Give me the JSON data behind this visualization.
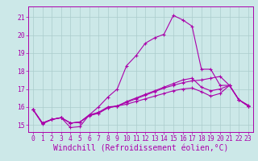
{
  "xlabel": "Windchill (Refroidissement éolien,°C)",
  "ylabel": "",
  "bg_color": "#cce8e8",
  "line_color": "#aa00aa",
  "xlim": [
    -0.5,
    23.5
  ],
  "ylim": [
    14.6,
    21.6
  ],
  "yticks": [
    15,
    16,
    17,
    18,
    19,
    20,
    21
  ],
  "xticks": [
    0,
    1,
    2,
    3,
    4,
    5,
    6,
    7,
    8,
    9,
    10,
    11,
    12,
    13,
    14,
    15,
    16,
    17,
    18,
    19,
    20,
    21,
    22,
    23
  ],
  "lines": [
    [
      0,
      15.85,
      1,
      15.05,
      2,
      15.3,
      3,
      15.4,
      4,
      14.85,
      5,
      14.9,
      6,
      15.55,
      7,
      16.0,
      8,
      16.55,
      9,
      17.0,
      10,
      18.3,
      11,
      18.85,
      12,
      19.55,
      13,
      19.85,
      14,
      20.05,
      15,
      21.1,
      16,
      20.85,
      17,
      20.5,
      18,
      18.1,
      19,
      18.1,
      20,
      17.2,
      21,
      17.2,
      22,
      16.4,
      23,
      16.1
    ],
    [
      0,
      15.85,
      1,
      15.1,
      2,
      15.3,
      3,
      15.4,
      4,
      15.1,
      5,
      15.15,
      6,
      15.5,
      7,
      15.65,
      8,
      15.95,
      9,
      16.05,
      10,
      16.25,
      11,
      16.45,
      12,
      16.65,
      13,
      16.85,
      14,
      17.05,
      15,
      17.2,
      16,
      17.35,
      17,
      17.45,
      18,
      17.5,
      19,
      17.6,
      20,
      17.7,
      21,
      17.2,
      22,
      16.4,
      23,
      16.05
    ],
    [
      0,
      15.85,
      1,
      15.1,
      2,
      15.3,
      3,
      15.4,
      4,
      15.1,
      5,
      15.15,
      6,
      15.55,
      7,
      15.7,
      8,
      16.0,
      9,
      16.05,
      10,
      16.3,
      11,
      16.5,
      12,
      16.7,
      13,
      16.9,
      14,
      17.1,
      15,
      17.3,
      16,
      17.5,
      17,
      17.6,
      18,
      17.1,
      19,
      16.9,
      20,
      17.0,
      21,
      17.2,
      22,
      16.4,
      23,
      16.05
    ],
    [
      0,
      15.85,
      1,
      15.1,
      2,
      15.3,
      3,
      15.4,
      4,
      15.1,
      5,
      15.15,
      6,
      15.55,
      7,
      15.65,
      8,
      15.95,
      9,
      16.05,
      10,
      16.15,
      11,
      16.3,
      12,
      16.45,
      13,
      16.6,
      14,
      16.75,
      15,
      16.9,
      16,
      17.0,
      17,
      17.05,
      18,
      16.85,
      19,
      16.6,
      20,
      16.75,
      21,
      17.2,
      22,
      16.4,
      23,
      16.05
    ]
  ],
  "grid_color": "#aacccc",
  "tick_fontsize": 5.8,
  "xlabel_fontsize": 7.0,
  "marker": "+"
}
